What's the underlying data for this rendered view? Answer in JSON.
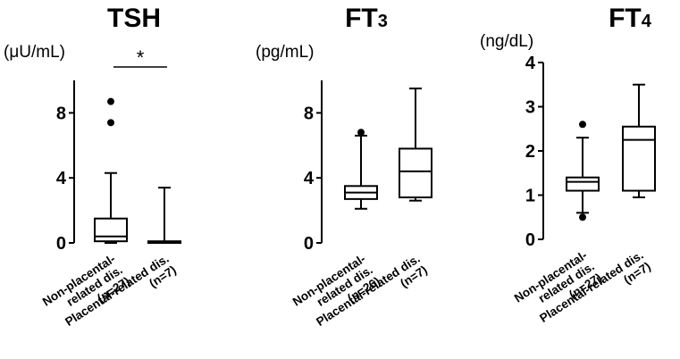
{
  "chart_data": [
    {
      "type": "box",
      "title": "TSH",
      "title_subscript": "",
      "ylabel": "(μU/mL)",
      "ylim": [
        0,
        10
      ],
      "yticks": [
        "0",
        "4",
        "8"
      ],
      "ytick_values": [
        0,
        4,
        8
      ],
      "categories": [
        "Non-placental-related dis. (n=27)",
        "Placental-related dis. (n=7)"
      ],
      "category_lines": [
        [
          "Non-placental-",
          "related dis.",
          "(n=27)"
        ],
        [
          "Placental-related dis.",
          "(n=7)"
        ]
      ],
      "boxes": [
        {
          "min": 0,
          "q1": 0.1,
          "median": 0.4,
          "q3": 1.5,
          "max": 4.3,
          "outliers": [
            7.4,
            8.7
          ]
        },
        {
          "min": 0,
          "q1": 0,
          "median": 0.05,
          "q3": 0.1,
          "max": 3.4,
          "outliers": []
        }
      ],
      "significance": "*"
    },
    {
      "type": "box",
      "title": "FT",
      "title_subscript": "3",
      "ylabel": "(pg/mL)",
      "ylim": [
        0,
        10
      ],
      "yticks": [
        "0",
        "4",
        "8"
      ],
      "ytick_values": [
        0,
        4,
        8
      ],
      "categories": [
        "Non-placental-related dis. (n=26)",
        "Placental-related dis. (n=7)"
      ],
      "category_lines": [
        [
          "Non-placental-",
          "related dis.",
          "(n=26)"
        ],
        [
          "Placental-related dis.",
          "(n=7)"
        ]
      ],
      "boxes": [
        {
          "min": 2.1,
          "q1": 2.7,
          "median": 3.1,
          "q3": 3.5,
          "max": 6.6,
          "outliers": [
            6.8
          ]
        },
        {
          "min": 2.6,
          "q1": 2.8,
          "median": 4.4,
          "q3": 5.8,
          "max": 9.5,
          "outliers": []
        }
      ],
      "significance": ""
    },
    {
      "type": "box",
      "title": "FT",
      "title_subscript": "4",
      "ylabel": "(ng/dL)",
      "ylim": [
        0,
        4
      ],
      "yticks": [
        "0",
        "1",
        "2",
        "3",
        "4"
      ],
      "ytick_values": [
        0,
        1,
        2,
        3,
        4
      ],
      "categories": [
        "Non-placental-related dis. (n=27)",
        "Placental-related dis. (n=7)"
      ],
      "category_lines": [
        [
          "Non-placental-",
          "related dis.",
          "(n=27)"
        ],
        [
          "Placental-related dis.",
          "(n=7)"
        ]
      ],
      "boxes": [
        {
          "min": 0.6,
          "q1": 1.1,
          "median": 1.3,
          "q3": 1.4,
          "max": 2.3,
          "outliers": [
            0.5,
            2.6
          ]
        },
        {
          "min": 0.95,
          "q1": 1.1,
          "median": 2.25,
          "q3": 2.55,
          "max": 3.5,
          "outliers": []
        }
      ],
      "significance": ""
    }
  ]
}
